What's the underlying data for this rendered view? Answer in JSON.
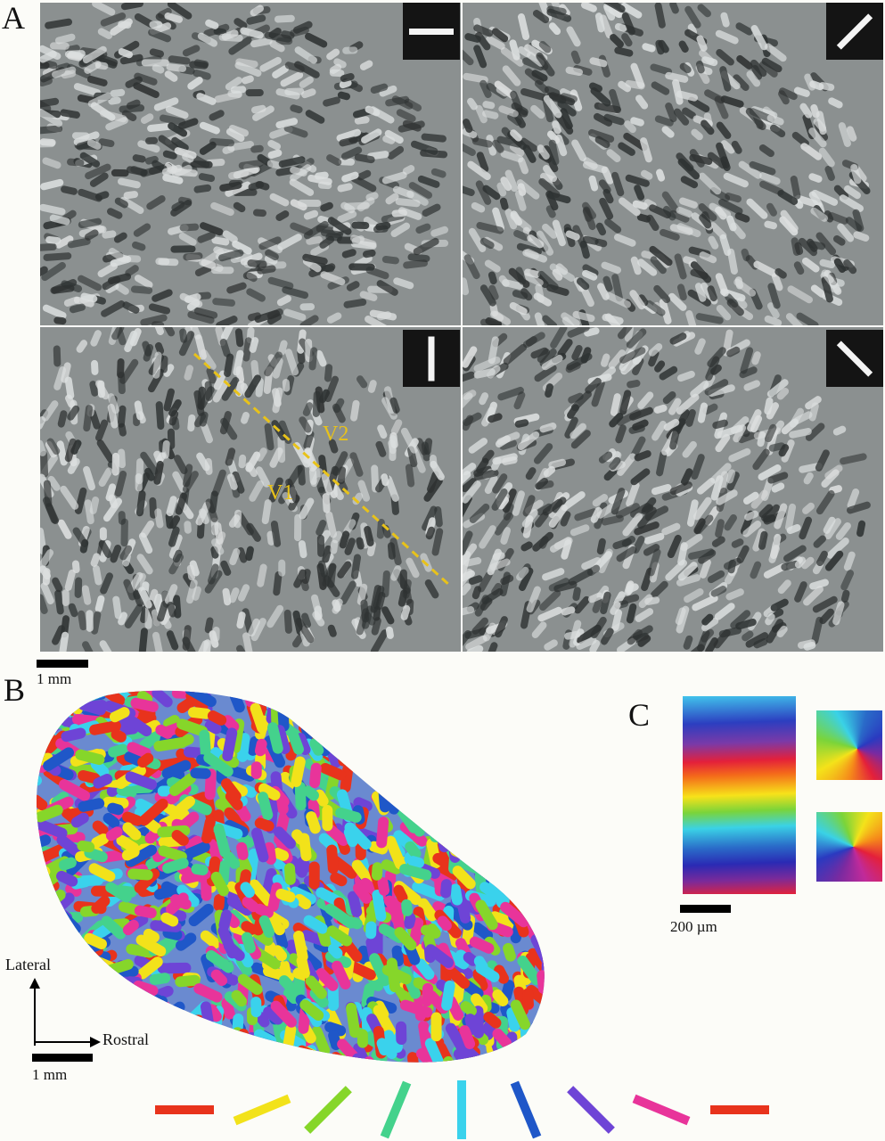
{
  "panels": {
    "a": {
      "letter": "A"
    },
    "b": {
      "letter": "B"
    },
    "c": {
      "letter": "C"
    }
  },
  "panel_a": {
    "tiles": [
      {
        "orientation_deg": 0,
        "icon": "horizontal-bar-icon"
      },
      {
        "orientation_deg": 45,
        "icon": "diagonal-bar-icon"
      },
      {
        "orientation_deg": 90,
        "icon": "vertical-bar-icon"
      },
      {
        "orientation_deg": 135,
        "icon": "antidiagonal-bar-icon"
      }
    ],
    "border_label_v1": "V1",
    "border_label_v2": "V2",
    "border_line_color": "#e8c21a",
    "scale_label": "1 mm"
  },
  "panel_b": {
    "axis_lateral": "Lateral",
    "axis_rostral": "Rostral",
    "scale_label": "1 mm"
  },
  "panel_c": {
    "scale_label": "200 µm"
  },
  "orientation_key": {
    "bars": [
      {
        "angle_deg": 0,
        "color": "#e8331c"
      },
      {
        "angle_deg": 22.5,
        "color": "#f2e21a"
      },
      {
        "angle_deg": 45,
        "color": "#86d62a"
      },
      {
        "angle_deg": 67.5,
        "color": "#44d28c"
      },
      {
        "angle_deg": 90,
        "color": "#3ad2ec"
      },
      {
        "angle_deg": 112.5,
        "color": "#1f57c8"
      },
      {
        "angle_deg": 135,
        "color": "#6e44d6"
      },
      {
        "angle_deg": 157.5,
        "color": "#e8349a"
      },
      {
        "angle_deg": 180,
        "color": "#e8331c"
      }
    ]
  }
}
